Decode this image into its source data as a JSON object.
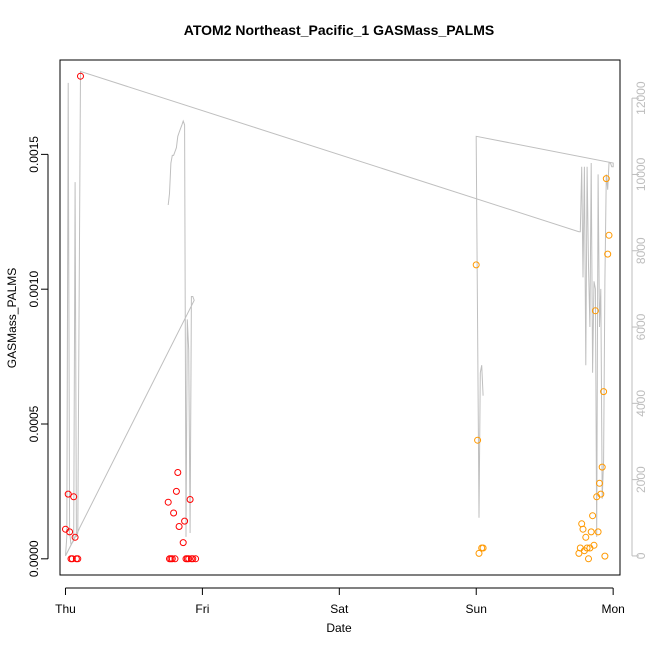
{
  "chart_data": {
    "type": "scatter",
    "title": "ATOM2 Northeast_Pacific_1 GASMass_PALMS",
    "xlabel": "Date",
    "ylabel": "GASMass_PALMS",
    "x_ticks": [
      "Thu",
      "Fri",
      "Sat",
      "Sun",
      "Mon"
    ],
    "x_range_days": [
      -0.04,
      4.05
    ],
    "y_ticks": [
      "0.0000",
      "0.0005",
      "0.0010",
      "0.0015"
    ],
    "ylim": [
      -6e-05,
      0.00185
    ],
    "y2_ticks": [
      "0",
      "2000",
      "4000",
      "6000",
      "8000",
      "10000",
      "12000"
    ],
    "y2lim": [
      -500,
      13000
    ],
    "grid": false,
    "colors": {
      "red_series": "#ff0000",
      "orange_series": "#ff9900",
      "altitude_line": "#bfbfbf",
      "frame": "#000000"
    },
    "series": [
      {
        "color": "red",
        "points": [
          [
            0.0,
            0.00011
          ],
          [
            0.02,
            0.00024
          ],
          [
            0.03,
            0.0001
          ],
          [
            0.04,
            0.0
          ],
          [
            0.05,
            0.0
          ],
          [
            0.06,
            0.00023
          ],
          [
            0.07,
            8e-05
          ],
          [
            0.08,
            0.0
          ],
          [
            0.09,
            0.0
          ],
          [
            0.11,
            0.00179
          ],
          [
            0.75,
            0.00021
          ],
          [
            0.76,
            0.0
          ],
          [
            0.77,
            0.0
          ],
          [
            0.78,
            0.0
          ],
          [
            0.79,
            0.00017
          ],
          [
            0.8,
            0.0
          ],
          [
            0.81,
            0.00025
          ],
          [
            0.82,
            0.00032
          ],
          [
            0.83,
            0.00012
          ],
          [
            0.86,
            6e-05
          ],
          [
            0.87,
            0.00014
          ],
          [
            0.88,
            0.0
          ],
          [
            0.89,
            0.0
          ],
          [
            0.9,
            0.0
          ],
          [
            0.91,
            0.00022
          ],
          [
            0.92,
            0.0
          ],
          [
            0.93,
            0.0
          ],
          [
            0.95,
            0.0
          ]
        ]
      },
      {
        "color": "orange",
        "points": [
          [
            3.0,
            0.00109
          ],
          [
            3.01,
            0.00044
          ],
          [
            3.02,
            2e-05
          ],
          [
            3.04,
            4e-05
          ],
          [
            3.05,
            4e-05
          ],
          [
            3.75,
            2e-05
          ],
          [
            3.76,
            4e-05
          ],
          [
            3.77,
            0.00013
          ],
          [
            3.78,
            0.00011
          ],
          [
            3.79,
            3e-05
          ],
          [
            3.8,
            8e-05
          ],
          [
            3.81,
            4e-05
          ],
          [
            3.82,
            0.0
          ],
          [
            3.83,
            4e-05
          ],
          [
            3.84,
            0.0001
          ],
          [
            3.85,
            0.00016
          ],
          [
            3.86,
            5e-05
          ],
          [
            3.87,
            0.00092
          ],
          [
            3.88,
            0.00023
          ],
          [
            3.89,
            0.0001
          ],
          [
            3.9,
            0.00028
          ],
          [
            3.91,
            0.00024
          ],
          [
            3.92,
            0.00034
          ],
          [
            3.93,
            0.00062
          ],
          [
            3.94,
            1e-05
          ],
          [
            3.95,
            0.00141
          ],
          [
            3.96,
            0.00113
          ],
          [
            3.97,
            0.0012
          ]
        ]
      }
    ],
    "altitude_line": [
      [
        0.0,
        0
      ],
      [
        0.01,
        500
      ],
      [
        0.02,
        12400
      ],
      [
        0.03,
        600
      ],
      [
        0.04,
        300
      ],
      [
        0.06,
        400
      ],
      [
        0.07,
        9800
      ],
      [
        0.08,
        500
      ],
      [
        0.09,
        600
      ],
      [
        0.1,
        7000
      ],
      [
        0.11,
        12700
      ],
      [
        3.75,
        8500
      ],
      [
        3.76,
        8500
      ],
      [
        3.77,
        10200
      ],
      [
        3.78,
        7300
      ],
      [
        3.79,
        10200
      ],
      [
        3.8,
        5000
      ],
      [
        3.81,
        10200
      ],
      [
        3.82,
        7600
      ],
      [
        3.83,
        6000
      ],
      [
        3.84,
        10300
      ],
      [
        3.85,
        4800
      ],
      [
        3.86,
        7200
      ],
      [
        3.87,
        7000
      ],
      [
        3.88,
        500
      ],
      [
        3.89,
        10000
      ],
      [
        3.9,
        6000
      ],
      [
        3.91,
        7000
      ],
      [
        3.92,
        1500
      ],
      [
        3.93,
        2500
      ],
      [
        3.94,
        7200
      ],
      [
        3.95,
        10000
      ],
      [
        3.96,
        9600
      ],
      [
        3.97,
        10300
      ],
      [
        3.98,
        10300
      ],
      [
        3.99,
        10200
      ],
      [
        4.0,
        10200
      ],
      [
        4.0,
        10300
      ],
      [
        3.0,
        11000
      ],
      [
        3.0,
        10900
      ],
      [
        3.01,
        6000
      ],
      [
        3.02,
        1000
      ],
      [
        3.03,
        4800
      ],
      [
        3.04,
        5000
      ],
      [
        3.05,
        4200
      ],
      null,
      [
        0.75,
        9200
      ],
      [
        0.76,
        9500
      ],
      [
        0.77,
        10300
      ],
      [
        0.78,
        10500
      ],
      [
        0.79,
        10500
      ],
      [
        0.8,
        10600
      ],
      [
        0.81,
        10700
      ],
      [
        0.82,
        11000
      ],
      [
        0.83,
        11100
      ],
      [
        0.84,
        11200
      ],
      [
        0.85,
        11300
      ],
      [
        0.86,
        11400
      ],
      [
        0.87,
        11300
      ],
      [
        0.88,
        500
      ],
      [
        0.89,
        6200
      ],
      [
        0.9,
        5400
      ],
      [
        0.91,
        600
      ],
      [
        0.92,
        6800
      ],
      [
        0.93,
        6800
      ],
      [
        0.94,
        6700
      ],
      [
        0.0,
        0
      ],
      [
        0.1,
        700
      ]
    ]
  }
}
